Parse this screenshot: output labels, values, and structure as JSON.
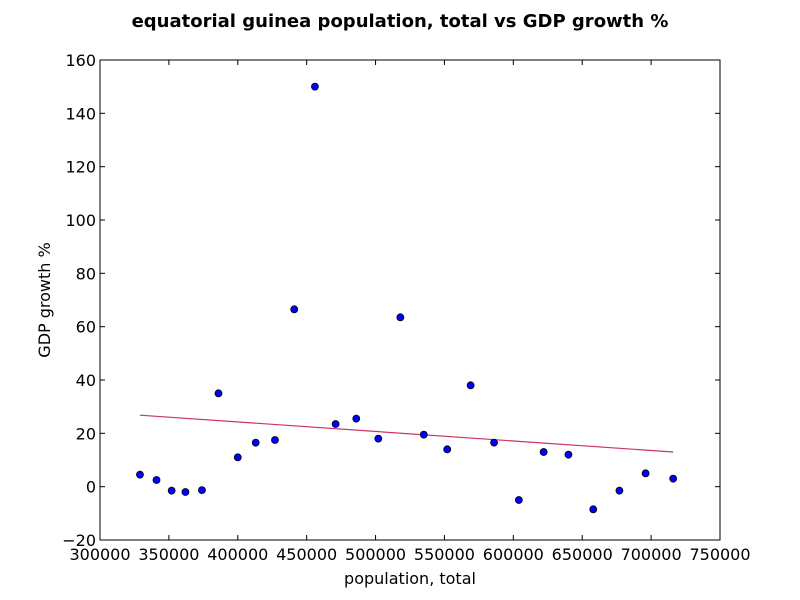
{
  "chart_data": {
    "type": "scatter",
    "title": "equatorial guinea population, total vs GDP growth %",
    "xlabel": "population, total",
    "ylabel": "GDP growth %",
    "xlim": [
      300000,
      750000
    ],
    "ylim": [
      -20,
      160
    ],
    "xticks": [
      300000,
      350000,
      400000,
      450000,
      500000,
      550000,
      600000,
      650000,
      700000,
      750000
    ],
    "yticks": [
      -20,
      0,
      20,
      40,
      60,
      80,
      100,
      120,
      140,
      160
    ],
    "grid": false,
    "series": [
      {
        "color": "#0000ff",
        "x": [
          329000,
          341000,
          352000,
          362000,
          374000,
          386000,
          400000,
          413000,
          427000,
          441000,
          456000,
          471000,
          486000,
          502000,
          518000,
          535000,
          552000,
          569000,
          586000,
          604000,
          622000,
          640000,
          658000,
          677000,
          696000,
          716000
        ],
        "y": [
          4.5,
          2.5,
          -1.5,
          -2.0,
          -1.3,
          35.0,
          11.0,
          16.5,
          17.5,
          66.5,
          150.0,
          23.5,
          25.5,
          18.0,
          63.5,
          19.5,
          14.0,
          38.0,
          16.5,
          -5.0,
          13.0,
          12.0,
          -8.5,
          -1.5,
          5.0,
          3.0
        ]
      }
    ],
    "trendline": {
      "color": "#cc3366",
      "x": [
        329000,
        716000
      ],
      "y": [
        26.8,
        13.0
      ]
    }
  }
}
